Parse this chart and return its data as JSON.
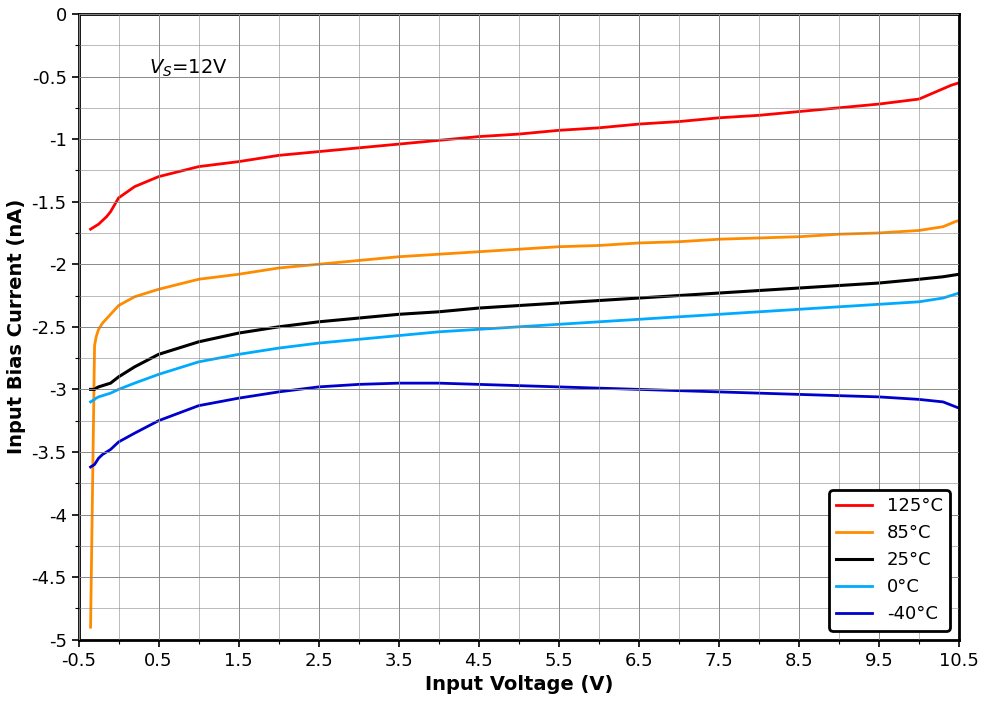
{
  "title": "",
  "xlabel": "Input Voltage (V)",
  "ylabel": "Input Bias Current (nA)",
  "annotation": "$V_S$=12V",
  "xlim": [
    -0.5,
    10.5
  ],
  "ylim": [
    -5,
    0
  ],
  "xticks": [
    -0.5,
    0.5,
    1.5,
    2.5,
    3.5,
    4.5,
    5.5,
    6.5,
    7.5,
    8.5,
    9.5,
    10.5
  ],
  "yticks": [
    0,
    -0.5,
    -1.0,
    -1.5,
    -2.0,
    -2.5,
    -3.0,
    -3.5,
    -4.0,
    -4.5,
    -5.0
  ],
  "xtick_labels": [
    "-0.5",
    "0.5",
    "1.5",
    "2.5",
    "3.5",
    "4.5",
    "5.5",
    "6.5",
    "7.5",
    "8.5",
    "9.5",
    "10.5"
  ],
  "ytick_labels": [
    "0",
    "-0.5",
    "-1",
    "-1.5",
    "-2",
    "-2.5",
    "-3",
    "-3.5",
    "-4",
    "-4.5",
    "-5"
  ],
  "background_color": "#ffffff",
  "grid_color": "#888888",
  "curves": [
    {
      "label": "125°C",
      "color": "#ff0000",
      "linewidth": 2.0,
      "x": [
        -0.35,
        -0.25,
        -0.2,
        -0.15,
        -0.1,
        0.0,
        0.2,
        0.5,
        1.0,
        1.5,
        2.0,
        2.5,
        3.0,
        3.5,
        4.0,
        4.5,
        5.0,
        5.5,
        6.0,
        6.5,
        7.0,
        7.5,
        8.0,
        8.5,
        9.0,
        9.5,
        10.0,
        10.4,
        10.5
      ],
      "y": [
        -1.72,
        -1.68,
        -1.65,
        -1.62,
        -1.58,
        -1.47,
        -1.38,
        -1.3,
        -1.22,
        -1.18,
        -1.13,
        -1.1,
        -1.07,
        -1.04,
        -1.01,
        -0.98,
        -0.96,
        -0.93,
        -0.91,
        -0.88,
        -0.86,
        -0.83,
        -0.81,
        -0.78,
        -0.75,
        -0.72,
        -0.68,
        -0.57,
        -0.55
      ]
    },
    {
      "label": "85°C",
      "color": "#ff8c00",
      "linewidth": 2.0,
      "x": [
        -0.35,
        -0.3,
        -0.28,
        -0.25,
        -0.2,
        -0.1,
        0.0,
        0.2,
        0.5,
        1.0,
        1.5,
        2.0,
        2.5,
        3.0,
        3.5,
        4.0,
        4.5,
        5.0,
        5.5,
        6.0,
        6.5,
        7.0,
        7.5,
        8.0,
        8.5,
        9.0,
        9.5,
        10.0,
        10.3,
        10.45,
        10.5
      ],
      "y": [
        -4.9,
        -2.65,
        -2.58,
        -2.52,
        -2.47,
        -2.4,
        -2.33,
        -2.26,
        -2.2,
        -2.12,
        -2.08,
        -2.03,
        -2.0,
        -1.97,
        -1.94,
        -1.92,
        -1.9,
        -1.88,
        -1.86,
        -1.85,
        -1.83,
        -1.82,
        -1.8,
        -1.79,
        -1.78,
        -1.76,
        -1.75,
        -1.73,
        -1.7,
        -1.66,
        -1.65
      ]
    },
    {
      "label": "25°C",
      "color": "#000000",
      "linewidth": 2.2,
      "x": [
        -0.35,
        -0.3,
        -0.28,
        -0.25,
        -0.2,
        -0.1,
        0.0,
        0.2,
        0.5,
        1.0,
        1.5,
        2.0,
        2.5,
        3.0,
        3.5,
        4.0,
        4.5,
        5.0,
        5.5,
        6.0,
        6.5,
        7.0,
        7.5,
        8.0,
        8.5,
        9.0,
        9.5,
        10.0,
        10.3,
        10.5
      ],
      "y": [
        -3.0,
        -3.0,
        -2.99,
        -2.98,
        -2.97,
        -2.95,
        -2.9,
        -2.82,
        -2.72,
        -2.62,
        -2.55,
        -2.5,
        -2.46,
        -2.43,
        -2.4,
        -2.38,
        -2.35,
        -2.33,
        -2.31,
        -2.29,
        -2.27,
        -2.25,
        -2.23,
        -2.21,
        -2.19,
        -2.17,
        -2.15,
        -2.12,
        -2.1,
        -2.08
      ]
    },
    {
      "label": "0°C",
      "color": "#00aaff",
      "linewidth": 2.0,
      "x": [
        -0.35,
        -0.3,
        -0.28,
        -0.25,
        -0.2,
        -0.1,
        0.0,
        0.2,
        0.5,
        1.0,
        1.5,
        2.0,
        2.5,
        3.0,
        3.5,
        4.0,
        4.5,
        5.0,
        5.5,
        6.0,
        6.5,
        7.0,
        7.5,
        8.0,
        8.5,
        9.0,
        9.5,
        10.0,
        10.3,
        10.45,
        10.5
      ],
      "y": [
        -3.1,
        -3.08,
        -3.07,
        -3.06,
        -3.05,
        -3.03,
        -3.0,
        -2.95,
        -2.88,
        -2.78,
        -2.72,
        -2.67,
        -2.63,
        -2.6,
        -2.57,
        -2.54,
        -2.52,
        -2.5,
        -2.48,
        -2.46,
        -2.44,
        -2.42,
        -2.4,
        -2.38,
        -2.36,
        -2.34,
        -2.32,
        -2.3,
        -2.27,
        -2.24,
        -2.23
      ]
    },
    {
      "label": "-40°C",
      "color": "#0000cc",
      "linewidth": 2.0,
      "x": [
        -0.35,
        -0.3,
        -0.28,
        -0.25,
        -0.2,
        -0.1,
        0.0,
        0.2,
        0.5,
        1.0,
        1.5,
        2.0,
        2.5,
        3.0,
        3.5,
        4.0,
        4.5,
        5.0,
        5.5,
        6.0,
        6.5,
        7.0,
        7.5,
        8.0,
        8.5,
        9.0,
        9.5,
        10.0,
        10.3,
        10.5
      ],
      "y": [
        -3.62,
        -3.6,
        -3.58,
        -3.55,
        -3.52,
        -3.48,
        -3.42,
        -3.35,
        -3.25,
        -3.13,
        -3.07,
        -3.02,
        -2.98,
        -2.96,
        -2.95,
        -2.95,
        -2.96,
        -2.97,
        -2.98,
        -2.99,
        -3.0,
        -3.01,
        -3.02,
        -3.03,
        -3.04,
        -3.05,
        -3.06,
        -3.08,
        -3.1,
        -3.15
      ]
    }
  ],
  "legend_loc": "lower right",
  "legend_fontsize": 13,
  "axis_label_fontsize": 14,
  "tick_fontsize": 13,
  "annotation_fontsize": 14
}
